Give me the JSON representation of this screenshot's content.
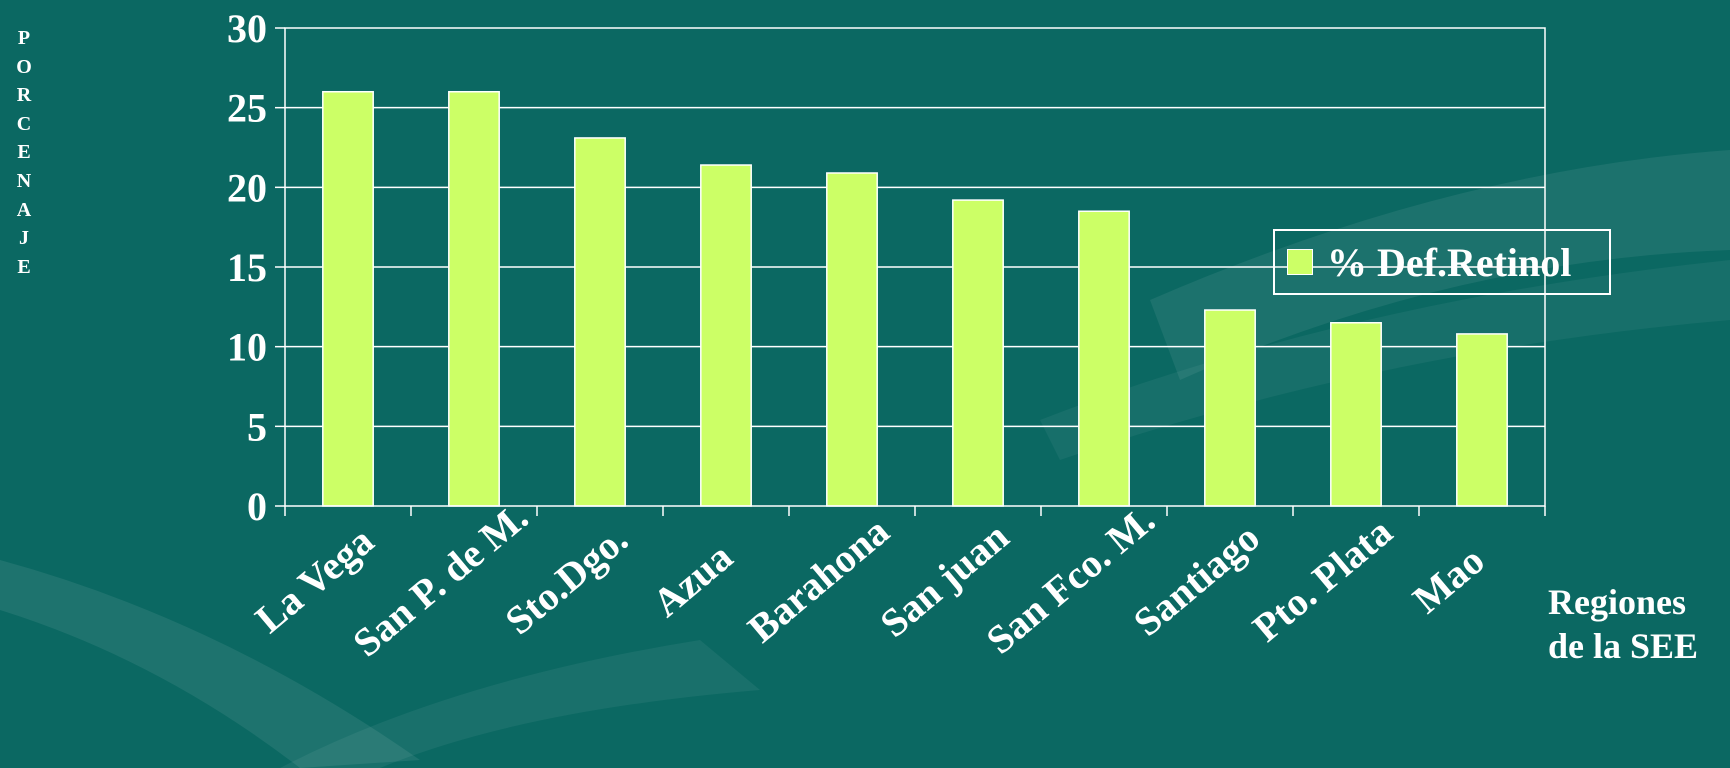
{
  "chart_data": {
    "type": "bar",
    "categories": [
      "La Vega",
      "San P. de M.",
      "Sto.Dgo.",
      "Azua",
      "Barahona",
      "San juan",
      "San Fco. M.",
      "Santiago",
      "Pto. Plata",
      "Mao"
    ],
    "series": [
      {
        "name": "% Def.Retinol",
        "values": [
          26,
          26,
          23.1,
          21.4,
          20.9,
          19.2,
          18.5,
          12.3,
          11.5,
          10.8
        ],
        "color": "#ccff66"
      }
    ],
    "ylabel": "PORCENAJE",
    "ylabel_letters": [
      "P",
      "O",
      "R",
      "C",
      "E",
      "N",
      "A",
      "J",
      "E"
    ],
    "xlabel_line1": "Regiones",
    "xlabel_line2": "de la SEE",
    "ylim": [
      0,
      30
    ],
    "yticks": [
      "0",
      "5",
      "10",
      "15",
      "20",
      "25",
      "30"
    ],
    "grid": true,
    "legend_position": "right",
    "background_color": "#0b6862"
  }
}
